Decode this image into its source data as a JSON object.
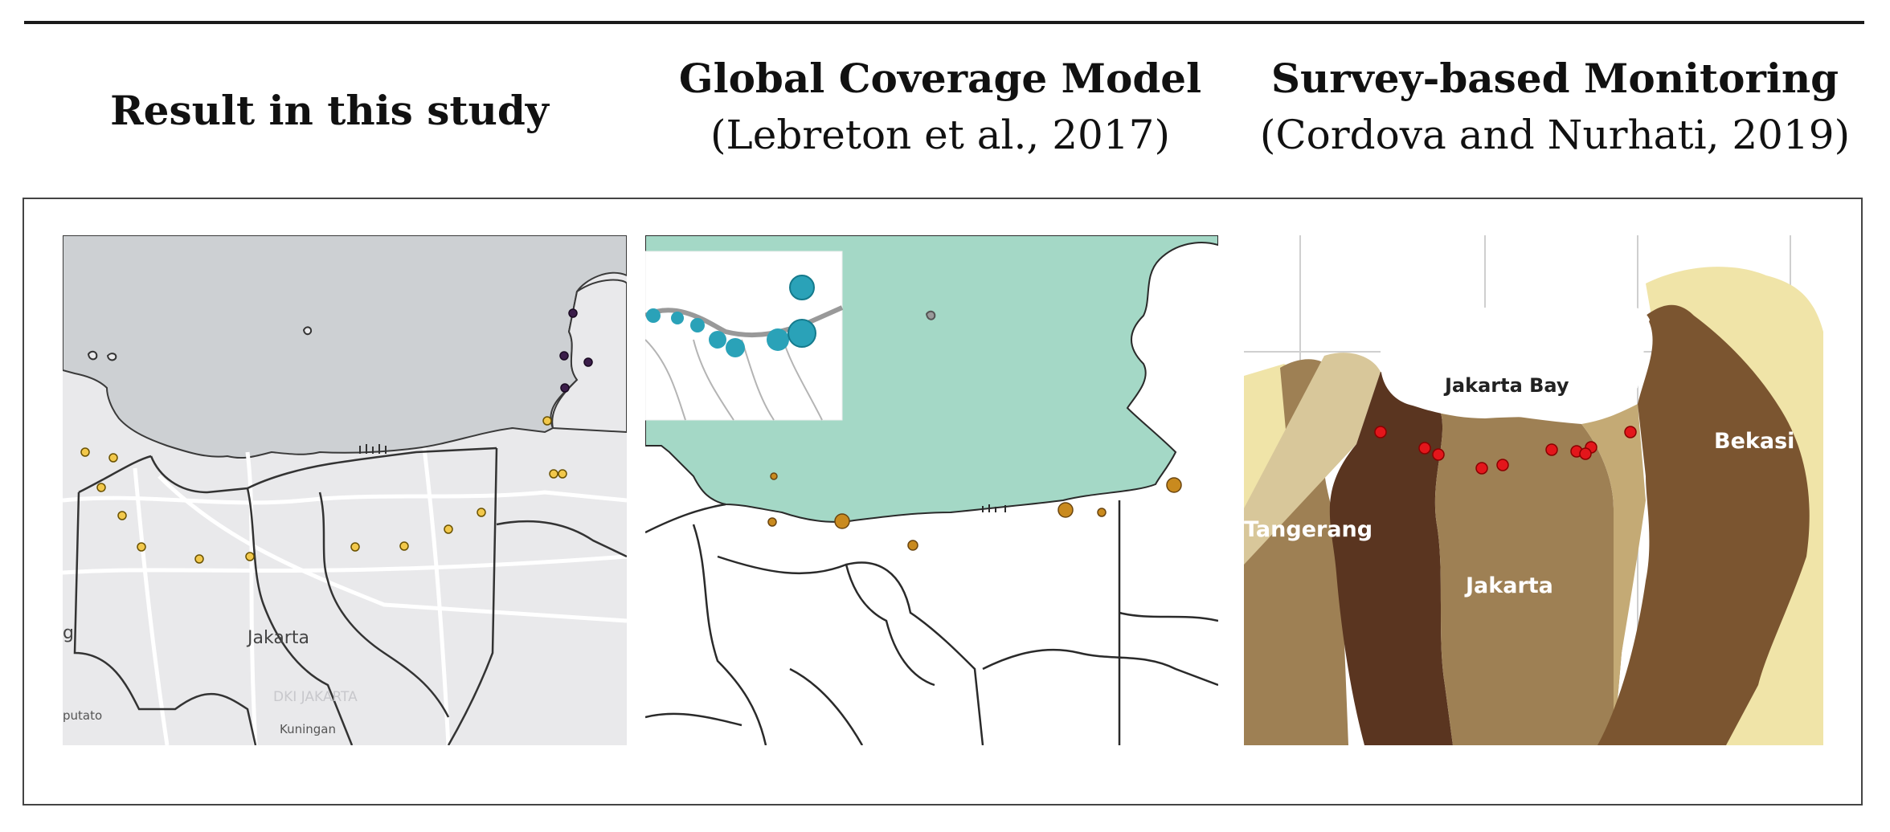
{
  "headers": {
    "col1": {
      "title": "Result in this study"
    },
    "col2": {
      "title": "Global Coverage Model",
      "citation": "(Lebreton et al., 2017)"
    },
    "col3": {
      "title": "Survey-based Monitoring",
      "citation": "(Cordova and Nurhati, 2019)"
    }
  },
  "panel1": {
    "labels": {
      "city": "Jakarta",
      "district": "DKI JAKARTA",
      "area1": "Kuningan",
      "area2": "putato",
      "edge": "g"
    },
    "colors": {
      "sea": "#cdd0d3",
      "land": "#e9e9eb",
      "point_yellow": "#f2c84b",
      "point_purple": "#3b1d4a"
    }
  },
  "panel2": {
    "colors": {
      "sea": "#a4d8c6",
      "land": "#ffffff",
      "point_orange": "#c98a1e",
      "inset_point": "#2aa2b8"
    }
  },
  "panel3": {
    "labels": {
      "bay": "Jakarta Bay",
      "west": "Tangerang",
      "center": "Jakarta",
      "east": "Bekasi"
    },
    "colors": {
      "dark_brown": "#5a3520",
      "mid_brown": "#7b5530",
      "light_brown": "#9e8054",
      "tan": "#c4aa75",
      "pale": "#f0e4a8",
      "point_red": "#e3161b"
    }
  }
}
